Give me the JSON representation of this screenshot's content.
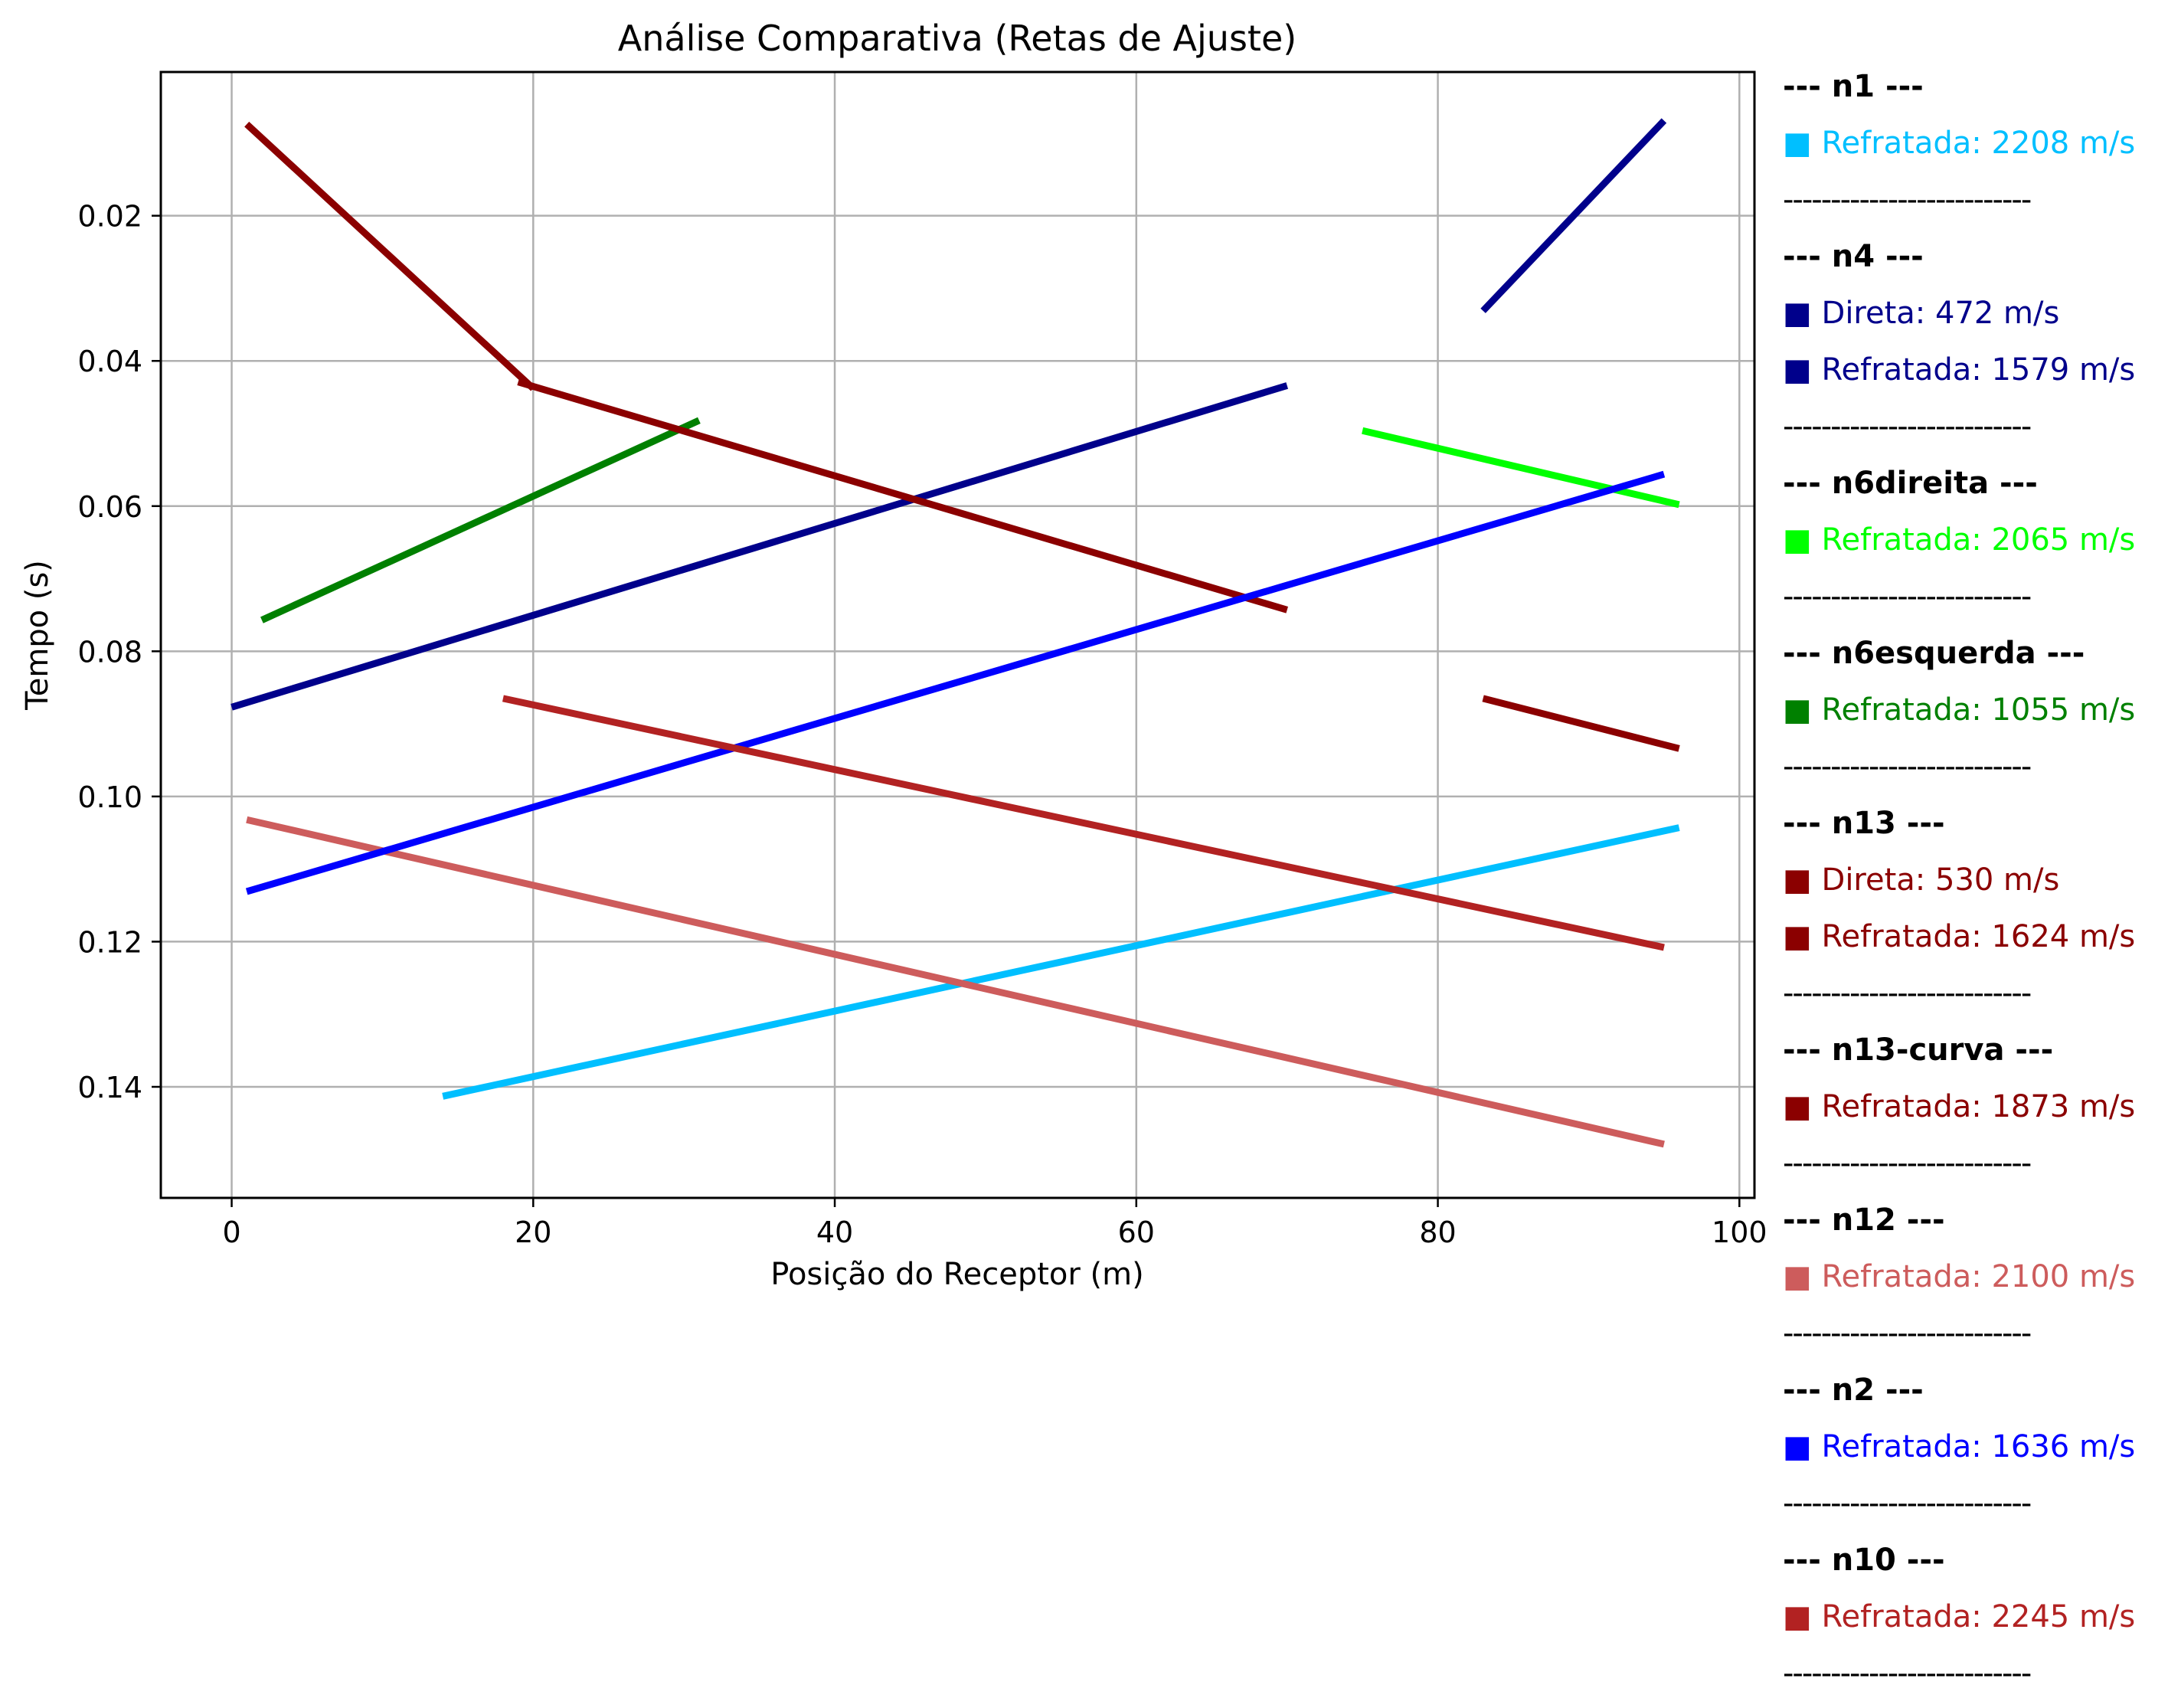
{
  "chart_data": {
    "type": "line",
    "title": "Análise Comparativa (Retas de Ajuste)",
    "xlabel": "Posição do Receptor (m)",
    "ylabel": "Tempo (s)",
    "xlim": [
      -4.7,
      101.0
    ],
    "ylim": [
      0.0002,
      0.1553
    ],
    "y_inverted": true,
    "grid": true,
    "x_ticks": [
      {
        "value": 0,
        "label": "0"
      },
      {
        "value": 20,
        "label": "20"
      },
      {
        "value": 40,
        "label": "40"
      },
      {
        "value": 60,
        "label": "60"
      },
      {
        "value": 80,
        "label": "80"
      },
      {
        "value": 100,
        "label": "100"
      }
    ],
    "y_ticks": [
      {
        "value": 0.02,
        "label": "0.02"
      },
      {
        "value": 0.04,
        "label": "0.04"
      },
      {
        "value": 0.06,
        "label": "0.06"
      },
      {
        "value": 0.08,
        "label": "0.08"
      },
      {
        "value": 0.1,
        "label": "0.10"
      },
      {
        "value": 0.12,
        "label": "0.12"
      },
      {
        "value": 0.14,
        "label": "0.14"
      }
    ],
    "series": [
      {
        "name": "Refratada: 2208 m/s",
        "group": "n1",
        "color": "#00bfff",
        "x": [
          14,
          96
        ],
        "y": [
          0.1413,
          0.1043
        ]
      },
      {
        "name": "Direta: 472 m/s",
        "group": "n4",
        "color": "#00008b",
        "x": [
          83,
          95
        ],
        "y": [
          0.0331,
          0.0069
        ]
      },
      {
        "name": "Refratada: 1579 m/s",
        "group": "n4",
        "color": "#00008b",
        "x": [
          0,
          70
        ],
        "y": [
          0.0877,
          0.0434
        ]
      },
      {
        "name": "Refratada: 2065 m/s",
        "group": "n6direita",
        "color": "#00ff00",
        "x": [
          75,
          96
        ],
        "y": [
          0.0496,
          0.0598
        ]
      },
      {
        "name": "Refratada: 1055 m/s",
        "group": "n6esquerda",
        "color": "#008000",
        "x": [
          2,
          31
        ],
        "y": [
          0.0757,
          0.0482
        ]
      },
      {
        "name": "Direta: 530 m/s",
        "group": "n13",
        "color": "#8b0000",
        "x": [
          1,
          20
        ],
        "y": [
          0.0074,
          0.0438
        ]
      },
      {
        "name": "Refratada: 1624 m/s",
        "group": "n13",
        "color": "#8b0000",
        "x": [
          19,
          70
        ],
        "y": [
          0.0429,
          0.0743
        ]
      },
      {
        "name": "Refratada: 1873 m/s",
        "group": "n13-curva",
        "color": "#8b0000",
        "x": [
          83,
          96
        ],
        "y": [
          0.0865,
          0.0934
        ]
      },
      {
        "name": "Refratada: 2100 m/s",
        "group": "n12",
        "color": "#cd5c5c",
        "x": [
          1,
          95
        ],
        "y": [
          0.1032,
          0.1479
        ]
      },
      {
        "name": "Refratada: 1636 m/s",
        "group": "n2",
        "color": "#0000ff",
        "x": [
          1,
          95
        ],
        "y": [
          0.1131,
          0.0556
        ]
      },
      {
        "name": "Refratada: 2245 m/s",
        "group": "n10",
        "color": "#b22222",
        "x": [
          18,
          95
        ],
        "y": [
          0.0865,
          0.1208
        ]
      }
    ]
  },
  "legend": {
    "separator": "--------------------------",
    "groups": [
      {
        "header": "--- n1 ---",
        "entries": [
          {
            "label": "Refratada: 2208 m/s",
            "color": "#00bfff"
          }
        ]
      },
      {
        "header": "--- n4 ---",
        "entries": [
          {
            "label": "Direta: 472 m/s",
            "color": "#00008b"
          },
          {
            "label": "Refratada: 1579 m/s",
            "color": "#00008b"
          }
        ]
      },
      {
        "header": "--- n6direita ---",
        "entries": [
          {
            "label": "Refratada: 2065 m/s",
            "color": "#00ff00"
          }
        ]
      },
      {
        "header": "--- n6esquerda ---",
        "entries": [
          {
            "label": "Refratada: 1055 m/s",
            "color": "#008000"
          }
        ]
      },
      {
        "header": "--- n13 ---",
        "entries": [
          {
            "label": "Direta: 530 m/s",
            "color": "#8b0000"
          },
          {
            "label": "Refratada: 1624 m/s",
            "color": "#8b0000"
          }
        ]
      },
      {
        "header": "--- n13-curva ---",
        "entries": [
          {
            "label": "Refratada: 1873 m/s",
            "color": "#8b0000"
          }
        ]
      },
      {
        "header": "--- n12 ---",
        "entries": [
          {
            "label": "Refratada: 2100 m/s",
            "color": "#cd5c5c"
          }
        ]
      },
      {
        "header": "--- n2 ---",
        "entries": [
          {
            "label": "Refratada: 1636 m/s",
            "color": "#0000ff"
          }
        ]
      },
      {
        "header": "--- n10 ---",
        "entries": [
          {
            "label": "Refratada: 2245 m/s",
            "color": "#b22222"
          }
        ]
      }
    ]
  }
}
